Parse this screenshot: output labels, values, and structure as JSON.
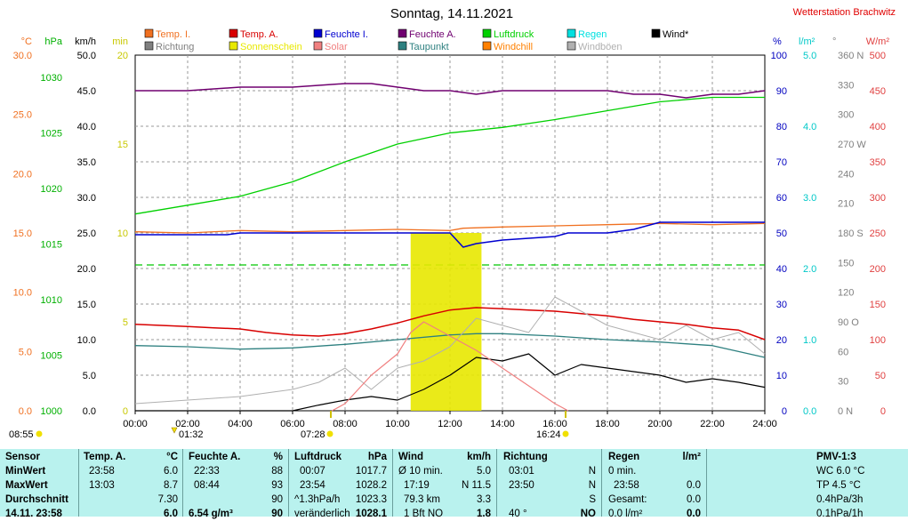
{
  "header": {
    "title": "Sonntag, 14.11.2021",
    "station": "Wetterstation Brachwitz"
  },
  "colors": {
    "temp_inside": "#f07020",
    "temp_outside": "#d80000",
    "humidity_inside": "#0000d0",
    "humidity_outside": "#700070",
    "pressure": "#00d000",
    "rain": "#00e0e0",
    "wind": "#000000",
    "direction": "#808080",
    "sunshine": "#e8e800",
    "solar": "#f08080",
    "dewpoint": "#2e8080",
    "windchill": "#ff8000",
    "gusts": "#b0b0b0"
  },
  "legend": [
    {
      "label": "Temp. I.",
      "color": "#f07020"
    },
    {
      "label": "Temp. A.",
      "color": "#d80000"
    },
    {
      "label": "Feuchte I.",
      "color": "#0000d0"
    },
    {
      "label": "Feuchte A.",
      "color": "#700070"
    },
    {
      "label": "Luftdruck",
      "color": "#00d000"
    },
    {
      "label": "Regen",
      "color": "#00e0e0"
    },
    {
      "label": "Wind*",
      "color": "#000000"
    },
    {
      "label": "Richtung",
      "color": "#808080"
    },
    {
      "label": "Sonnenschein",
      "color": "#e8e800"
    },
    {
      "label": "Solar",
      "color": "#f08080"
    },
    {
      "label": "Taupunkt",
      "color": "#2e8080"
    },
    {
      "label": "Windchill",
      "color": "#ff8000"
    },
    {
      "label": "Windböen",
      "color": "#b0b0b0"
    }
  ],
  "axes": {
    "temp": {
      "unit": "°C",
      "ticks": [
        "30.0",
        "25.0",
        "20.0",
        "15.0",
        "10.0",
        "5.0",
        "0.0"
      ],
      "color": "#f07020"
    },
    "pressure": {
      "unit": "hPa",
      "ticks": [
        "1030",
        "1025",
        "1020",
        "1015",
        "1010",
        "1005",
        "1000"
      ],
      "color": "#00b000"
    },
    "wind": {
      "unit": "km/h",
      "ticks": [
        "50.0",
        "45.0",
        "40.0",
        "35.0",
        "30.0",
        "25.0",
        "20.0",
        "15.0",
        "10.0",
        "5.0",
        "0.0"
      ],
      "color": "#000000"
    },
    "sun": {
      "unit": "min",
      "ticks": [
        "20",
        "15",
        "10",
        "5",
        "0"
      ],
      "color": "#c8c800"
    },
    "humidity": {
      "unit": "%",
      "ticks": [
        "100",
        "90",
        "80",
        "70",
        "60",
        "50",
        "40",
        "30",
        "20",
        "10",
        "0"
      ],
      "color": "#0000c0"
    },
    "rain": {
      "unit": "l/m²",
      "ticks": [
        "5.0",
        "4.0",
        "3.0",
        "2.0",
        "1.0",
        "0.0"
      ],
      "color": "#00c8c8"
    },
    "direction": {
      "unit": "°",
      "ticks": [
        "360 N",
        "330",
        "300",
        "270 W",
        "240",
        "210",
        "180 S",
        "150",
        "120",
        "90 O",
        "60",
        "30",
        "0 N"
      ],
      "color": "#808080"
    },
    "solar": {
      "unit": "W/m²",
      "ticks": [
        "500",
        "450",
        "400",
        "350",
        "300",
        "250",
        "200",
        "150",
        "100",
        "50",
        "0"
      ],
      "color": "#e04040"
    },
    "time": {
      "ticks": [
        "00:00",
        "02:00",
        "04:00",
        "06:00",
        "08:00",
        "10:00",
        "12:00",
        "14:00",
        "16:00",
        "18:00",
        "20:00",
        "22:00",
        "24:00"
      ]
    }
  },
  "markers": {
    "sunrise_left": "08:55",
    "moon": "01:32",
    "sunrise": "07:28",
    "sunset": "16:24"
  },
  "chart_data": {
    "type": "line",
    "title": "Sonntag, 14.11.2021",
    "x_unit": "hour",
    "xlim": [
      0,
      24
    ],
    "series": [
      {
        "name": "Temp. I.",
        "axis": "°C",
        "x": [
          0,
          2,
          4,
          6,
          8,
          10,
          12,
          12.5,
          14,
          16,
          18,
          20,
          22,
          24
        ],
        "y": [
          15.1,
          15.0,
          15.2,
          15.1,
          15.2,
          15.3,
          15.2,
          15.4,
          15.5,
          15.6,
          15.7,
          15.8,
          15.7,
          15.8
        ]
      },
      {
        "name": "Temp. A.",
        "axis": "°C",
        "x": [
          0,
          1,
          2,
          3,
          4,
          5,
          6,
          7,
          8,
          9,
          10,
          11,
          12,
          13,
          14,
          15,
          16,
          17,
          18,
          19,
          20,
          21,
          22,
          23,
          24
        ],
        "y": [
          7.3,
          7.2,
          7.1,
          7.0,
          6.9,
          6.6,
          6.4,
          6.3,
          6.5,
          6.9,
          7.4,
          8.0,
          8.5,
          8.7,
          8.6,
          8.5,
          8.4,
          8.2,
          8.0,
          7.7,
          7.5,
          7.3,
          7.0,
          6.8,
          6.0
        ]
      },
      {
        "name": "Feuchte I.",
        "axis": "%",
        "x": [
          0,
          2,
          3.5,
          4,
          6,
          8,
          10,
          12,
          12.5,
          13,
          14,
          16,
          16.5,
          18,
          19,
          20,
          22,
          24
        ],
        "y": [
          49.5,
          49.5,
          49.5,
          50,
          50,
          50,
          50,
          50,
          46,
          47,
          48,
          49,
          50,
          50,
          51,
          53,
          53,
          53
        ]
      },
      {
        "name": "Feuchte A.",
        "axis": "%",
        "x": [
          0,
          2,
          4,
          6,
          8,
          9,
          10,
          11,
          12,
          13,
          14,
          15,
          16,
          17,
          18,
          19,
          20,
          21,
          22,
          23,
          24
        ],
        "y": [
          90,
          90,
          91,
          91,
          92,
          92,
          91,
          90,
          90,
          89,
          90,
          90,
          90,
          90,
          90,
          89,
          89,
          88,
          89,
          89,
          90
        ]
      },
      {
        "name": "Luftdruck",
        "axis": "hPa",
        "x": [
          0,
          2,
          4,
          6,
          8,
          10,
          12,
          14,
          16,
          18,
          20,
          22,
          24
        ],
        "y": [
          1017.7,
          1018.5,
          1019.3,
          1020.6,
          1022.4,
          1024.0,
          1025.0,
          1025.5,
          1026.2,
          1027.0,
          1027.8,
          1028.2,
          1028.2
        ]
      },
      {
        "name": "Taupunkt",
        "axis": "°C",
        "x": [
          0,
          2,
          4,
          6,
          8,
          10,
          12,
          13,
          14,
          16,
          18,
          20,
          22,
          24
        ],
        "y": [
          5.5,
          5.4,
          5.2,
          5.3,
          5.6,
          6.0,
          6.4,
          6.5,
          6.5,
          6.3,
          6.0,
          5.8,
          5.5,
          4.5
        ]
      },
      {
        "name": "Wind*",
        "axis": "km/h",
        "x": [
          0,
          6,
          7,
          8,
          9,
          10,
          11,
          12,
          13,
          14,
          15,
          16,
          17,
          18,
          19,
          20,
          21,
          22,
          23,
          24
        ],
        "y": [
          0,
          0,
          0.8,
          1.5,
          2.0,
          1.5,
          3.0,
          5.0,
          7.5,
          7.0,
          8.0,
          5.0,
          6.5,
          6.0,
          5.5,
          5.0,
          4.0,
          4.5,
          4.0,
          3.3
        ]
      },
      {
        "name": "Windböen",
        "axis": "km/h",
        "x": [
          0,
          2,
          4,
          6,
          7,
          8,
          9,
          10,
          11,
          12,
          13,
          14,
          15,
          16,
          17,
          18,
          19,
          20,
          21,
          22,
          23,
          24
        ],
        "y": [
          1,
          1.5,
          2,
          3,
          4,
          6,
          3,
          6,
          7,
          9,
          13,
          12,
          11,
          16,
          14,
          12,
          11,
          10,
          12,
          10,
          11,
          8
        ]
      },
      {
        "name": "Solar",
        "axis": "W/m²",
        "x": [
          7.5,
          8,
          9,
          10,
          10.5,
          11,
          12,
          13,
          14,
          15,
          16,
          16.5
        ],
        "y": [
          0,
          10,
          50,
          80,
          110,
          125,
          105,
          85,
          60,
          35,
          10,
          0
        ]
      },
      {
        "name": "Sonnenschein",
        "axis": "min",
        "x": [
          10.5,
          13.2
        ],
        "y": [
          10,
          10
        ]
      }
    ],
    "reference_line": {
      "axis": "%",
      "value": 41,
      "color": "#00c800"
    }
  },
  "stats": {
    "sensor": {
      "header": "Sensor",
      "rows": [
        "MinWert",
        "MaxWert",
        "Durchschnitt",
        "14.11. 23:58"
      ]
    },
    "temp": {
      "header": "Temp. A.",
      "unit": "°C",
      "rows": [
        [
          "23:58",
          "6.0"
        ],
        [
          "13:03",
          "8.7"
        ],
        [
          "",
          "7.30"
        ],
        [
          "",
          "6.0"
        ]
      ]
    },
    "humidity": {
      "header": "Feuchte A.",
      "unit": "%",
      "rows": [
        [
          "22:33",
          "88"
        ],
        [
          "08:44",
          "93"
        ],
        [
          "",
          "90"
        ],
        [
          "6.54 g/m³",
          "90"
        ]
      ]
    },
    "pressure": {
      "header": "Luftdruck",
      "unit": "hPa",
      "rows": [
        [
          "00:07",
          "1017.7"
        ],
        [
          "23:54",
          "1028.2"
        ],
        [
          "^1.3hPa/h",
          "1023.3"
        ],
        [
          "veränderlich",
          "1028.1"
        ]
      ]
    },
    "wind": {
      "header": "Wind",
      "unit": "km/h",
      "rows": [
        [
          "Ø 10 min.",
          "5.0"
        ],
        [
          "17:19",
          "N 11.5"
        ],
        [
          "79.3 km",
          "3.3"
        ],
        [
          "1 Bft NO",
          "1.8"
        ]
      ]
    },
    "direction": {
      "header": "Richtung",
      "rows": [
        [
          "03:01",
          "N"
        ],
        [
          "23:50",
          "N"
        ],
        [
          "",
          "S"
        ],
        [
          "40 °",
          "NO"
        ]
      ]
    },
    "rain": {
      "header": "Regen",
      "unit": "l/m²",
      "rows": [
        [
          "0 min.",
          ""
        ],
        [
          "23:58",
          "0.0"
        ],
        [
          "Gesamt:",
          "0.0"
        ],
        [
          "0.0 l/m²",
          "0.0"
        ]
      ]
    },
    "pmv": {
      "header": "PMV-1:3",
      "rows": [
        "WC 6.0 °C",
        "TP 4.5 °C",
        "0.4hPa/3h",
        "0.1hPa/1h"
      ]
    }
  }
}
